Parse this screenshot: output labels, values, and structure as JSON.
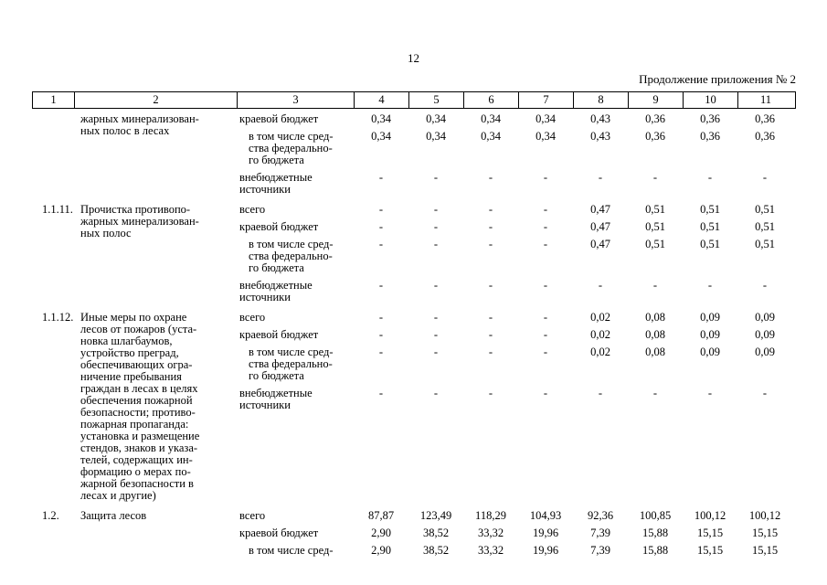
{
  "page": {
    "number": "12",
    "continuation": "Продолжение приложения № 2"
  },
  "table": {
    "header": [
      "1",
      "2",
      "3",
      "4",
      "5",
      "6",
      "7",
      "8",
      "9",
      "10",
      "11"
    ],
    "items": [
      {
        "num": "",
        "name": "жарных минерализован-\nных полос в лесах",
        "lines": [
          {
            "label": "краевой бюджет",
            "indent": false,
            "values": [
              "0,34",
              "0,34",
              "0,34",
              "0,34",
              "0,43",
              "0,36",
              "0,36",
              "0,36"
            ]
          },
          {
            "label": "в том числе сред-\nства федерально-\nго бюджета",
            "indent": true,
            "values": [
              "0,34",
              "0,34",
              "0,34",
              "0,34",
              "0,43",
              "0,36",
              "0,36",
              "0,36"
            ]
          },
          {
            "label": "внебюджетные\nисточники",
            "indent": false,
            "values": [
              "-",
              "-",
              "-",
              "-",
              "-",
              "-",
              "-",
              "-"
            ]
          }
        ]
      },
      {
        "num": "1.1.11.",
        "name": "Прочистка противопо-\nжарных минерализован-\nных полос",
        "lines": [
          {
            "label": "всего",
            "indent": false,
            "values": [
              "-",
              "-",
              "-",
              "-",
              "0,47",
              "0,51",
              "0,51",
              "0,51"
            ]
          },
          {
            "label": "краевой бюджет",
            "indent": false,
            "values": [
              "-",
              "-",
              "-",
              "-",
              "0,47",
              "0,51",
              "0,51",
              "0,51"
            ]
          },
          {
            "label": "в том числе сред-\nства федерально-\nго бюджета",
            "indent": true,
            "values": [
              "-",
              "-",
              "-",
              "-",
              "0,47",
              "0,51",
              "0,51",
              "0,51"
            ]
          },
          {
            "label": "внебюджетные\nисточники",
            "indent": false,
            "values": [
              "-",
              "-",
              "-",
              "-",
              "-",
              "-",
              "-",
              "-"
            ]
          }
        ]
      },
      {
        "num": "1.1.12.",
        "name": "Иные меры по охране\nлесов от пожаров (уста-\nновка шлагбаумов,\nустройство преград,\nобеспечивающих огра-\nничение пребывания\nграждан в лесах в целях\nобеспечения пожарной\nбезопасности; противо-\nпожарная пропаганда:\nустановка и размещение\nстендов, знаков и указа-\nтелей, содержащих ин-\nформацию о мерах по-\nжарной безопасности в\nлесах и другие)",
        "lines": [
          {
            "label": "всего",
            "indent": false,
            "values": [
              "-",
              "-",
              "-",
              "-",
              "0,02",
              "0,08",
              "0,09",
              "0,09"
            ]
          },
          {
            "label": "краевой бюджет",
            "indent": false,
            "values": [
              "-",
              "-",
              "-",
              "-",
              "0,02",
              "0,08",
              "0,09",
              "0,09"
            ]
          },
          {
            "label": "в том числе сред-\nства федерально-\nго бюджета",
            "indent": true,
            "values": [
              "-",
              "-",
              "-",
              "-",
              "0,02",
              "0,08",
              "0,09",
              "0,09"
            ]
          },
          {
            "label": "внебюджетные\nисточники",
            "indent": false,
            "values": [
              "-",
              "-",
              "-",
              "-",
              "-",
              "-",
              "-",
              "-"
            ]
          }
        ]
      },
      {
        "num": "1.2.",
        "name": "Защита лесов",
        "lines": [
          {
            "label": "всего",
            "indent": false,
            "values": [
              "87,87",
              "123,49",
              "118,29",
              "104,93",
              "92,36",
              "100,85",
              "100,12",
              "100,12"
            ]
          },
          {
            "label": "краевой бюджет",
            "indent": false,
            "values": [
              "2,90",
              "38,52",
              "33,32",
              "19,96",
              "7,39",
              "15,88",
              "15,15",
              "15,15"
            ]
          },
          {
            "label": "в том числе сред-",
            "indent": true,
            "values": [
              "2,90",
              "38,52",
              "33,32",
              "19,96",
              "7,39",
              "15,88",
              "15,15",
              "15,15"
            ]
          }
        ]
      }
    ]
  }
}
